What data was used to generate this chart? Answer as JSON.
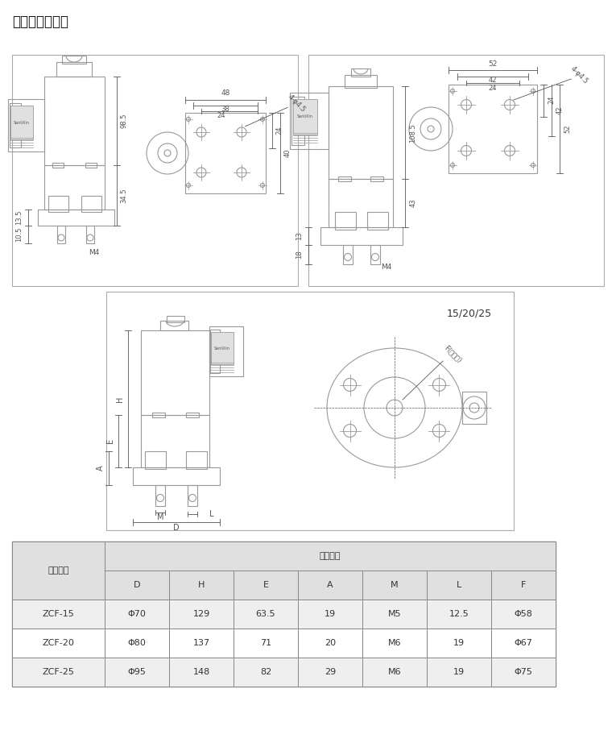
{
  "title": "结构外型尺寸图",
  "title_fontsize": 12,
  "bg_color": "#ffffff",
  "lc": "#999999",
  "dc": "#555555",
  "table_header1": "产品型号",
  "table_header2": "外形尺寸",
  "table_cols": [
    "D",
    "H",
    "E",
    "A",
    "M",
    "L",
    "F"
  ],
  "table_rows": [
    [
      "ZCF-15",
      "Φ70",
      "129",
      "63.5",
      "19",
      "M5",
      "12.5",
      "Φ58"
    ],
    [
      "ZCF-20",
      "Φ80",
      "137",
      "71",
      "20",
      "M6",
      "19",
      "Φ67"
    ],
    [
      "ZCF-25",
      "Φ95",
      "148",
      "82",
      "29",
      "M6",
      "19",
      "Φ75"
    ]
  ],
  "table_bg_header": "#e0e0e0",
  "table_bg_row_odd": "#efefef",
  "table_bg_row_even": "#ffffff",
  "note_text": "15/20/25"
}
